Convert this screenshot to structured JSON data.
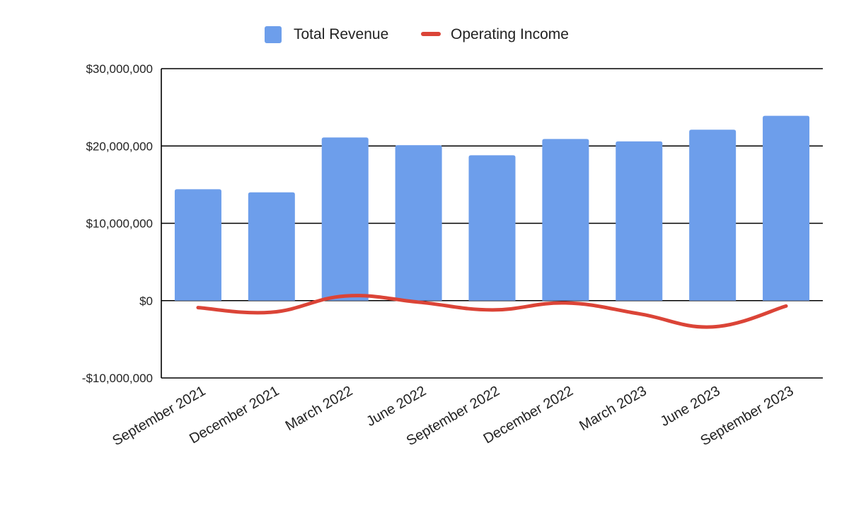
{
  "chart_data": {
    "type": "bar",
    "title": "",
    "xlabel": "",
    "ylabel": "",
    "categories": [
      "September 2021",
      "December 2021",
      "March 2022",
      "June 2022",
      "September 2022",
      "December 2022",
      "March 2023",
      "June 2023",
      "September 2023"
    ],
    "ylim": [
      -10000000,
      30000000
    ],
    "yticks": [
      {
        "value": 30000000,
        "label": "$30,000,000"
      },
      {
        "value": 20000000,
        "label": "$20,000,000"
      },
      {
        "value": 10000000,
        "label": "$10,000,000"
      },
      {
        "value": 0,
        "label": "$0"
      },
      {
        "value": -10000000,
        "label": "-$10,000,000"
      }
    ],
    "grid": true,
    "legend_position": "top",
    "series": [
      {
        "name": "Total Revenue",
        "type": "bar",
        "color": "#6d9eeb",
        "values": [
          14400000,
          14000000,
          21100000,
          20100000,
          18800000,
          20900000,
          20600000,
          22100000,
          23900000
        ]
      },
      {
        "name": "Operating Income",
        "type": "line",
        "smooth": true,
        "color": "#db4437",
        "values": [
          -900000,
          -1500000,
          600000,
          -200000,
          -1200000,
          -300000,
          -1700000,
          -3400000,
          -700000
        ]
      }
    ]
  }
}
